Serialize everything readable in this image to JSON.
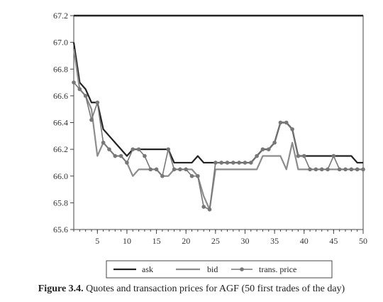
{
  "chart_data": {
    "type": "line",
    "title": "",
    "xlabel": "",
    "ylabel": "",
    "xlim": [
      1,
      50
    ],
    "ylim": [
      65.6,
      67.2
    ],
    "x_ticks": [
      5,
      10,
      15,
      20,
      25,
      30,
      35,
      40,
      45,
      50
    ],
    "y_ticks": [
      65.6,
      65.8,
      66.0,
      66.2,
      66.4,
      66.6,
      66.8,
      67.0,
      67.2
    ],
    "x": [
      1,
      2,
      3,
      4,
      5,
      6,
      7,
      8,
      9,
      10,
      11,
      12,
      13,
      14,
      15,
      16,
      17,
      18,
      19,
      20,
      21,
      22,
      23,
      24,
      25,
      26,
      27,
      28,
      29,
      30,
      31,
      32,
      33,
      34,
      35,
      36,
      37,
      38,
      39,
      40,
      41,
      42,
      43,
      44,
      45,
      46,
      47,
      48,
      49,
      50
    ],
    "series": [
      {
        "name": "ask",
        "color": "#222222",
        "values": [
          67.0,
          66.7,
          66.65,
          66.55,
          66.55,
          66.35,
          66.3,
          66.25,
          66.2,
          66.15,
          66.2,
          66.2,
          66.2,
          66.2,
          66.2,
          66.2,
          66.2,
          66.1,
          66.1,
          66.1,
          66.1,
          66.15,
          66.1,
          66.1,
          66.1,
          66.1,
          66.1,
          66.1,
          66.1,
          66.1,
          66.1,
          66.15,
          66.2,
          66.2,
          66.25,
          66.4,
          66.4,
          66.35,
          66.15,
          66.15,
          66.15,
          66.15,
          66.15,
          66.15,
          66.15,
          66.15,
          66.15,
          66.15,
          66.1,
          66.1
        ]
      },
      {
        "name": "bid",
        "color": "#8c8c8c",
        "values": [
          66.95,
          66.65,
          66.6,
          66.5,
          66.15,
          66.25,
          66.2,
          66.15,
          66.15,
          66.1,
          66.0,
          66.05,
          66.05,
          66.05,
          66.05,
          66.0,
          66.0,
          66.05,
          66.05,
          66.05,
          66.05,
          66.0,
          65.85,
          65.75,
          66.05,
          66.05,
          66.05,
          66.05,
          66.05,
          66.05,
          66.05,
          66.05,
          66.15,
          66.15,
          66.15,
          66.15,
          66.05,
          66.25,
          66.05,
          66.05,
          66.05,
          66.05,
          66.05,
          66.05,
          66.05,
          66.05,
          66.05,
          66.05,
          66.05,
          66.05
        ]
      },
      {
        "name": "trans. price",
        "color": "#777777",
        "marker": "circle",
        "values": [
          66.7,
          66.65,
          66.6,
          66.42,
          66.55,
          66.25,
          66.2,
          66.15,
          66.15,
          66.1,
          66.2,
          66.2,
          66.15,
          66.05,
          66.05,
          66.0,
          66.2,
          66.05,
          66.05,
          66.05,
          66.0,
          66.0,
          65.77,
          65.75,
          66.1,
          66.1,
          66.1,
          66.1,
          66.1,
          66.1,
          66.1,
          66.15,
          66.2,
          66.2,
          66.25,
          66.4,
          66.4,
          66.35,
          66.15,
          66.15,
          66.05,
          66.05,
          66.05,
          66.05,
          66.15,
          66.05,
          66.05,
          66.05,
          66.05,
          66.05
        ]
      }
    ],
    "legend_position": "bottom",
    "grid": false
  },
  "caption": {
    "figure_number": "Figure 3.4.",
    "text": "Quotes and transaction prices for AGF (50 first trades of the day)"
  }
}
